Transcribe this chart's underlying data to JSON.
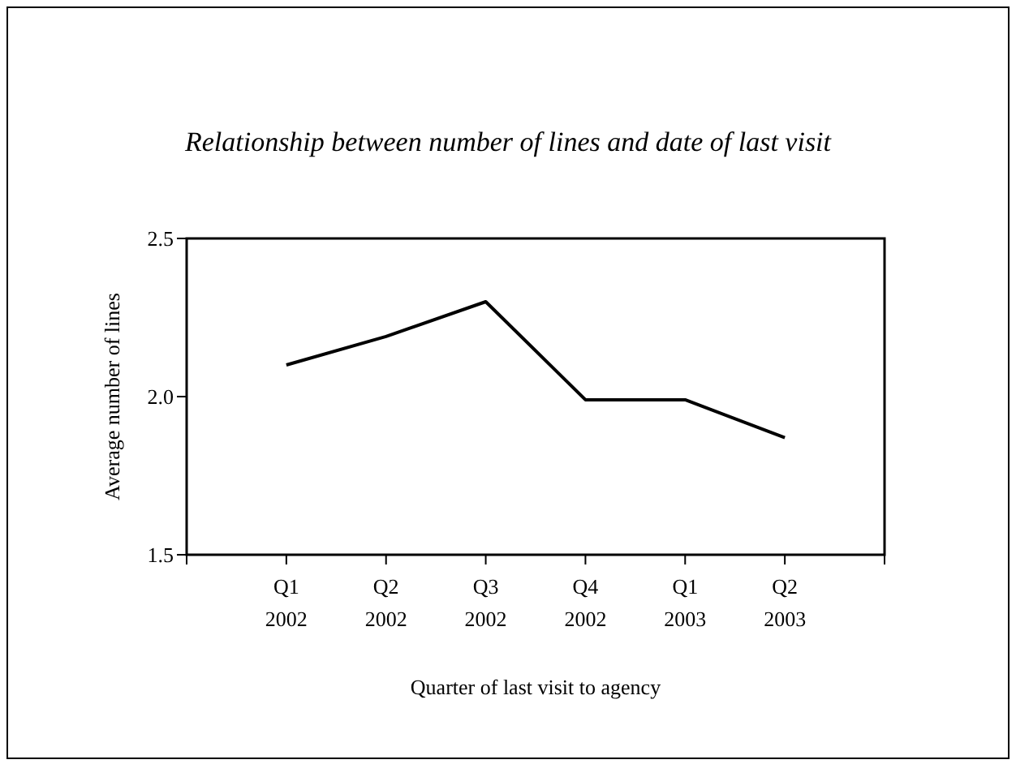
{
  "chart_data": {
    "type": "line",
    "title": "Relationship between number of lines and date of last visit",
    "xlabel": "Quarter of last visit to agency",
    "ylabel": "Average number of lines",
    "categories": [
      "Q1 2002",
      "Q2 2002",
      "Q3 2002",
      "Q4 2002",
      "Q1 2003",
      "Q2 2003"
    ],
    "series": [
      {
        "color": "#000000",
        "values": [
          2.1,
          2.19,
          2.3,
          1.99,
          1.99,
          1.87
        ]
      }
    ],
    "ylim": [
      1.5,
      2.5
    ],
    "yticks": [
      {
        "value": 1.5,
        "label": "1.5"
      },
      {
        "value": 2,
        "label": "2.0"
      },
      {
        "value": 2.5,
        "label": "2.5"
      }
    ],
    "grid": false,
    "legend": false,
    "marker": "none",
    "line_style": "solid"
  }
}
